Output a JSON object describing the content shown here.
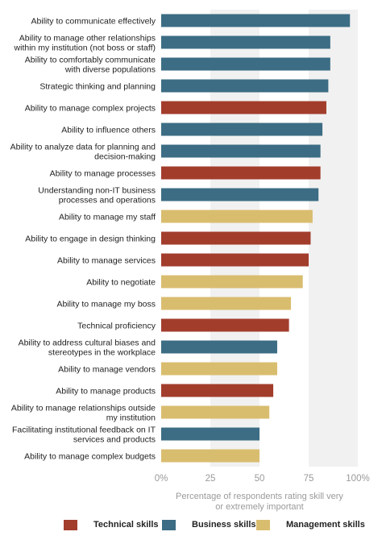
{
  "chart_data": {
    "type": "bar",
    "orientation": "horizontal",
    "categories": [
      [
        "Ability to communicate effectively"
      ],
      [
        "Ability to manage other relationships",
        "within my institution (not boss or staff)"
      ],
      [
        "Ability to comfortably communicate",
        "with diverse populations"
      ],
      [
        "Strategic thinking and planning"
      ],
      [
        "Ability to manage complex projects"
      ],
      [
        "Ability to influence others"
      ],
      [
        "Ability to analyze data for planning and",
        "decision-making"
      ],
      [
        "Ability to manage processes"
      ],
      [
        "Understanding non-IT business",
        "processes and operations"
      ],
      [
        "Ability to manage my staff"
      ],
      [
        "Ability to engage in design thinking"
      ],
      [
        "Ability to manage services"
      ],
      [
        "Ability to negotiate"
      ],
      [
        "Ability to manage my boss"
      ],
      [
        "Technical proficiency"
      ],
      [
        "Ability to address cultural biases and",
        "stereotypes in the workplace"
      ],
      [
        "Ability to manage vendors"
      ],
      [
        "Ability to manage products"
      ],
      [
        "Ability to manage relationships outside",
        "my institution"
      ],
      [
        "Facilitating institutional feedback on IT",
        "services and products"
      ],
      [
        "Ability to manage complex budgets"
      ]
    ],
    "values": [
      96,
      86,
      86,
      85,
      84,
      82,
      81,
      81,
      80,
      77,
      76,
      75,
      72,
      66,
      65,
      59,
      59,
      57,
      55,
      50,
      50
    ],
    "skill_type": [
      "business",
      "business",
      "business",
      "business",
      "technical",
      "business",
      "business",
      "technical",
      "business",
      "management",
      "technical",
      "technical",
      "management",
      "management",
      "technical",
      "business",
      "management",
      "technical",
      "management",
      "business",
      "management"
    ],
    "xlim": [
      0,
      100
    ],
    "xticks": [
      "0%",
      "25",
      "50",
      "75",
      "100%"
    ],
    "xtick_values": [
      0,
      25,
      50,
      75,
      100
    ],
    "xlabel": [
      "Percentage of respondents rating skill very",
      "or extremely important"
    ],
    "grid": "alternating column bands",
    "legend": [
      {
        "key": "technical",
        "label": "Technical skills",
        "color": "#a23d2c"
      },
      {
        "key": "business",
        "label": "Business skills",
        "color": "#3c6d84"
      },
      {
        "key": "management",
        "label": "Management skills",
        "color": "#d9bd6f"
      }
    ],
    "legend_position": "bottom"
  }
}
